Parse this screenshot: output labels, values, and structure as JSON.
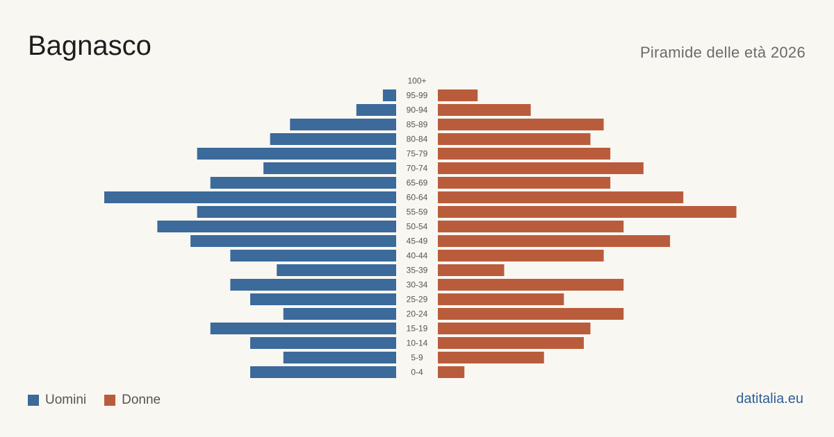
{
  "header": {
    "title": "Bagnasco",
    "subtitle": "Piramide delle età 2026"
  },
  "footer": {
    "brand": "datitalia.eu"
  },
  "colors": {
    "men": "#3b6a9b",
    "women": "#b95c3c",
    "background": "#f9f7f2",
    "age_label": "#555555"
  },
  "chart_data": {
    "type": "bar",
    "orientation": "horizontal-pyramid",
    "categories": [
      "100+",
      "95-99",
      "90-94",
      "85-89",
      "80-84",
      "75-79",
      "70-74",
      "65-69",
      "60-64",
      "55-59",
      "50-54",
      "45-49",
      "40-44",
      "35-39",
      "30-34",
      "25-29",
      "20-24",
      "15-19",
      "10-14",
      "5-9",
      "0-4"
    ],
    "series": [
      {
        "name": "Uomini",
        "side": "left",
        "values": [
          0,
          2,
          6,
          16,
          19,
          30,
          20,
          28,
          44,
          30,
          36,
          31,
          25,
          18,
          25,
          22,
          17,
          28,
          22,
          17,
          22
        ]
      },
      {
        "name": "Donne",
        "side": "right",
        "values": [
          0,
          6,
          14,
          25,
          23,
          26,
          31,
          26,
          37,
          45,
          28,
          35,
          25,
          10,
          28,
          19,
          28,
          23,
          22,
          16,
          4
        ]
      }
    ],
    "axis_max": 50,
    "legend": "bottom-left",
    "grid": false
  }
}
